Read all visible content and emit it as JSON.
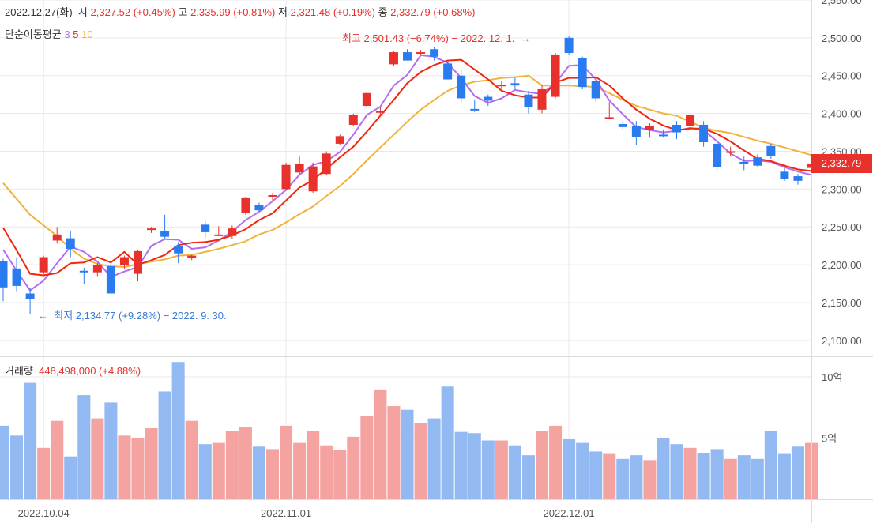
{
  "header": {
    "date": "2022.12.27(화)",
    "open_label": "시",
    "open_value": "2,327.52 (+0.45%)",
    "high_label": "고",
    "high_value": "2,335.99 (+0.81%)",
    "low_label": "저",
    "low_value": "2,321.48 (+0.19%)",
    "close_label": "종",
    "close_value": "2,332.79 (+0.68%)"
  },
  "legend": {
    "label": "단순이동평균",
    "ma3": "3",
    "ma5": "5",
    "ma10": "10"
  },
  "volume_header": {
    "label": "거래량",
    "value": "448,498,000 (+4.88%)"
  },
  "last_price_badge": "2,332.79",
  "annotations": {
    "high": "최고 2,501.43 (−6.74%) − 2022. 12. 1.",
    "low": "최저 2,134.77 (+9.28%) − 2022. 9. 30."
  },
  "colors": {
    "up": "#e8312b",
    "down": "#2b7bf0",
    "vol_up": "#f4a3a1",
    "vol_down": "#93b9f2",
    "ma3": "#b56ef0",
    "ma5": "#f0260e",
    "ma10": "#f0b43c",
    "grid": "#e9e9e9",
    "axis_text": "#555555"
  },
  "chart_data": {
    "type": "candlestick",
    "title": "",
    "ylim": [
      2080,
      2550
    ],
    "price_ticks": [
      "2,100.00",
      "2,150.00",
      "2,200.00",
      "2,250.00",
      "2,300.00",
      "2,350.00",
      "2,400.00",
      "2,450.00",
      "2,500.00",
      "2,550.00"
    ],
    "volume_ylim": [
      0,
      11.6
    ],
    "volume_ticks": [
      "5억",
      "10억"
    ],
    "x_ticks": [
      {
        "index": 3,
        "label": "2022.10.04"
      },
      {
        "index": 21,
        "label": "2022.11.01"
      },
      {
        "index": 42,
        "label": "2022.12.01"
      }
    ],
    "ohlc": [
      [
        2205,
        2208,
        2152,
        2170
      ],
      [
        2195,
        2210,
        2165,
        2172
      ],
      [
        2162,
        2170,
        2135,
        2155
      ],
      [
        2190,
        2212,
        2185,
        2210
      ],
      [
        2232,
        2250,
        2228,
        2240
      ],
      [
        2235,
        2244,
        2210,
        2221
      ],
      [
        2192,
        2196,
        2175,
        2190
      ],
      [
        2190,
        2202,
        2185,
        2200
      ],
      [
        2198,
        2203,
        2162,
        2162
      ],
      [
        2200,
        2212,
        2195,
        2210
      ],
      [
        2188,
        2220,
        2178,
        2218
      ],
      [
        2248,
        2250,
        2242,
        2248
      ],
      [
        2245,
        2266,
        2235,
        2237
      ],
      [
        2225,
        2230,
        2202,
        2215
      ],
      [
        2209,
        2213,
        2206,
        2212
      ],
      [
        2253,
        2258,
        2236,
        2243
      ],
      [
        2240,
        2251,
        2238,
        2240
      ],
      [
        2238,
        2252,
        2234,
        2248
      ],
      [
        2268,
        2290,
        2266,
        2289
      ],
      [
        2279,
        2282,
        2270,
        2272
      ],
      [
        2290,
        2295,
        2285,
        2292
      ],
      [
        2300,
        2335,
        2298,
        2332
      ],
      [
        2322,
        2343,
        2318,
        2333
      ],
      [
        2297,
        2335,
        2295,
        2330
      ],
      [
        2320,
        2350,
        2318,
        2347
      ],
      [
        2360,
        2372,
        2358,
        2370
      ],
      [
        2385,
        2400,
        2383,
        2398
      ],
      [
        2410,
        2430,
        2408,
        2427
      ],
      [
        2402,
        2408,
        2398,
        2403
      ],
      [
        2465,
        2482,
        2463,
        2481
      ],
      [
        2481,
        2485,
        2470,
        2470
      ],
      [
        2481,
        2484,
        2478,
        2481
      ],
      [
        2485,
        2488,
        2470,
        2475
      ],
      [
        2466,
        2468,
        2445,
        2445
      ],
      [
        2450,
        2458,
        2415,
        2420
      ],
      [
        2406,
        2418,
        2402,
        2405
      ],
      [
        2422,
        2425,
        2410,
        2417
      ],
      [
        2438,
        2443,
        2432,
        2438
      ],
      [
        2440,
        2447,
        2432,
        2437
      ],
      [
        2425,
        2430,
        2400,
        2409
      ],
      [
        2405,
        2438,
        2400,
        2432
      ],
      [
        2422,
        2480,
        2420,
        2478
      ],
      [
        2500,
        2502,
        2478,
        2480
      ],
      [
        2473,
        2475,
        2432,
        2435
      ],
      [
        2443,
        2445,
        2416,
        2420
      ],
      [
        2395,
        2415,
        2393,
        2395
      ],
      [
        2386,
        2388,
        2379,
        2382
      ],
      [
        2384,
        2390,
        2358,
        2369
      ],
      [
        2378,
        2387,
        2368,
        2384
      ],
      [
        2372,
        2378,
        2368,
        2371
      ],
      [
        2385,
        2390,
        2366,
        2375
      ],
      [
        2383,
        2400,
        2380,
        2398
      ],
      [
        2385,
        2390,
        2356,
        2362
      ],
      [
        2360,
        2362,
        2325,
        2329
      ],
      [
        2348,
        2356,
        2343,
        2350
      ],
      [
        2336,
        2343,
        2325,
        2333
      ],
      [
        2342,
        2346,
        2330,
        2331
      ],
      [
        2357,
        2360,
        2340,
        2344
      ],
      [
        2323,
        2328,
        2311,
        2313
      ],
      [
        2317,
        2320,
        2306,
        2311
      ],
      [
        2328,
        2336,
        2321,
        2333
      ]
    ],
    "volume": [
      6.0,
      5.2,
      9.5,
      4.2,
      6.4,
      3.5,
      8.5,
      6.6,
      7.9,
      5.2,
      5.0,
      5.8,
      8.8,
      11.2,
      6.4,
      4.5,
      4.6,
      5.6,
      5.9,
      4.3,
      4.1,
      6.0,
      4.6,
      5.6,
      4.4,
      4.0,
      5.1,
      6.8,
      8.9,
      7.6,
      7.3,
      6.2,
      6.6,
      9.2,
      5.5,
      5.4,
      4.8,
      4.8,
      4.4,
      3.6,
      5.6,
      6.0,
      4.9,
      4.6,
      3.9,
      3.7,
      3.3,
      3.6,
      3.2,
      5.0,
      4.5,
      4.2,
      3.8,
      4.1,
      3.3,
      3.6,
      3.3,
      5.6,
      3.7,
      4.3,
      4.6
    ],
    "ma3": [
      2220,
      2192,
      2166,
      2179,
      2202,
      2224,
      2217,
      2204,
      2184,
      2191,
      2197,
      2225,
      2234,
      2233,
      2221,
      2223,
      2232,
      2244,
      2259,
      2270,
      2284,
      2299,
      2319,
      2332,
      2337,
      2349,
      2372,
      2398,
      2409,
      2437,
      2451,
      2477,
      2475,
      2467,
      2447,
      2423,
      2414,
      2420,
      2431,
      2428,
      2426,
      2440,
      2463,
      2464,
      2445,
      2417,
      2399,
      2382,
      2378,
      2375,
      2377,
      2381,
      2378,
      2363,
      2347,
      2337,
      2338,
      2336,
      2329,
      2323,
      2319
    ],
    "ma5": [
      2249,
      2219,
      2188,
      2186,
      2189,
      2202,
      2203,
      2210,
      2203,
      2217,
      2200,
      2206,
      2213,
      2226,
      2229,
      2230,
      2233,
      2239,
      2247,
      2259,
      2268,
      2285,
      2302,
      2312,
      2327,
      2342,
      2356,
      2376,
      2397,
      2418,
      2440,
      2455,
      2464,
      2470,
      2471,
      2458,
      2445,
      2430,
      2424,
      2421,
      2421,
      2441,
      2447,
      2447,
      2448,
      2437,
      2420,
      2405,
      2393,
      2384,
      2378,
      2380,
      2380,
      2373,
      2363,
      2351,
      2340,
      2337,
      2331,
      2326,
      2324
    ],
    "ma10": [
      2308,
      2287,
      2266,
      2252,
      2238,
      2221,
      2208,
      2201,
      2198,
      2197,
      2201,
      2204,
      2207,
      2212,
      2213,
      2217,
      2221,
      2226,
      2231,
      2240,
      2246,
      2256,
      2267,
      2277,
      2291,
      2304,
      2320,
      2338,
      2355,
      2372,
      2389,
      2405,
      2418,
      2430,
      2437,
      2442,
      2444,
      2447,
      2448,
      2450,
      2437,
      2437,
      2437,
      2436,
      2435,
      2427,
      2418,
      2410,
      2405,
      2400,
      2397,
      2389,
      2381,
      2377,
      2374,
      2369,
      2364,
      2360,
      2355,
      2350,
      2345
    ]
  }
}
